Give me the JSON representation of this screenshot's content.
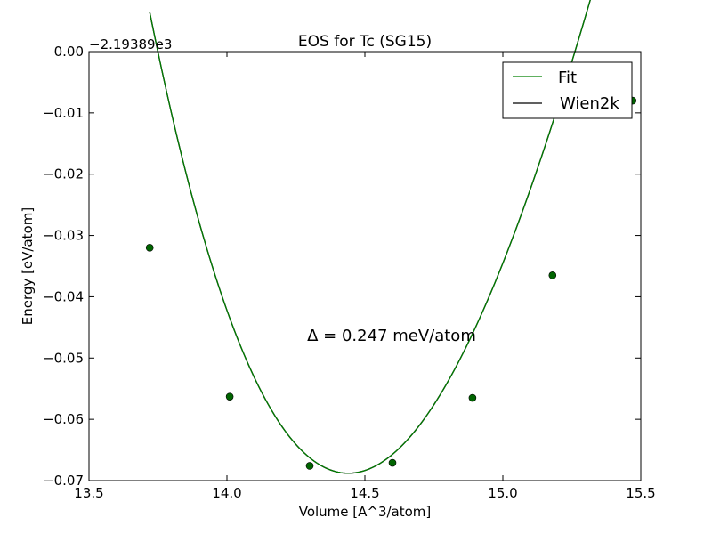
{
  "chart_data": {
    "type": "line",
    "title": "EOS for Tc (SG15)",
    "xlabel": "Volume [A^3/atom]",
    "ylabel": "Energy [eV/atom]",
    "offset_label": "−2.19389e3",
    "annotation": "Δ = 0.247 meV/atom",
    "xlim": [
      13.5,
      15.5
    ],
    "ylim": [
      -0.07,
      0.0
    ],
    "x_ticks": [
      13.5,
      14.0,
      14.5,
      15.0,
      15.5
    ],
    "x_tick_labels": [
      "13.5",
      "14.0",
      "14.5",
      "15.0",
      "15.5"
    ],
    "y_ticks": [
      0.0,
      -0.01,
      -0.02,
      -0.03,
      -0.04,
      -0.05,
      -0.06,
      -0.07
    ],
    "y_tick_labels": [
      "0.00",
      "−0.01",
      "−0.02",
      "−0.03",
      "−0.04",
      "−0.05",
      "−0.06",
      "−0.07"
    ],
    "grid": false,
    "legend_position": "top-right",
    "series": [
      {
        "name": "Fit",
        "kind": "line",
        "color": "#008000",
        "x_range": [
          13.72,
          15.47
        ],
        "fit": {
          "e0": -0.0688,
          "v0": 14.44,
          "a": 0.125,
          "b": -0.028
        }
      },
      {
        "name": "Wien2k",
        "kind": "line",
        "color": "#000000",
        "x_range": [
          13.72,
          15.47
        ],
        "fit": {
          "e0": -0.0688,
          "v0": 14.44,
          "a": 0.125,
          "b": -0.028
        }
      },
      {
        "name": "",
        "kind": "points",
        "color": "#006400",
        "x": [
          13.72,
          14.01,
          14.3,
          14.6,
          14.89,
          15.18,
          15.47
        ],
        "y": [
          -0.032,
          -0.0563,
          -0.0676,
          -0.0671,
          -0.0565,
          -0.0365,
          -0.008
        ]
      }
    ]
  }
}
